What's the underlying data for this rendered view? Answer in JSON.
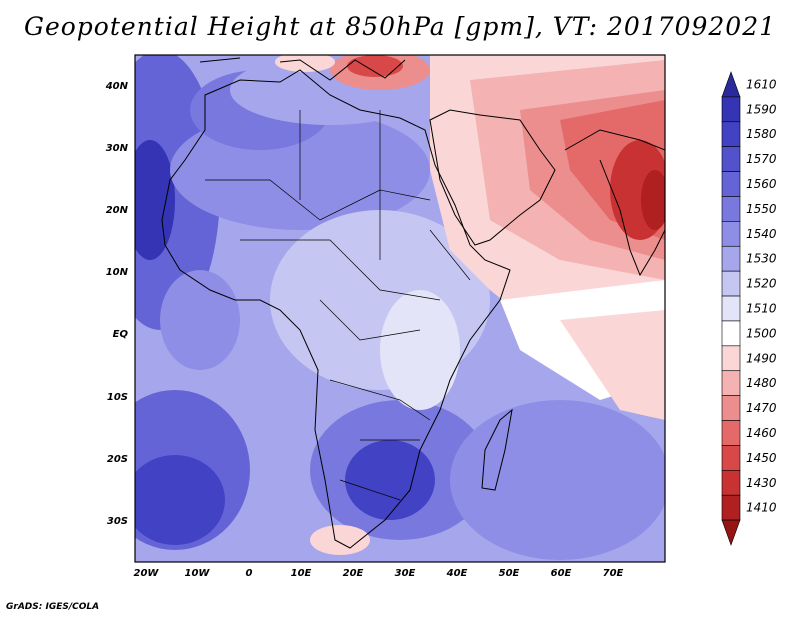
{
  "title": "Geopotential Height at 850hPa [gpm], VT: 2017092021",
  "credit": "GrADS: IGES/COLA",
  "axes": {
    "lat_ticks": [
      "40N",
      "30N",
      "20N",
      "10N",
      "EQ",
      "10S",
      "20S",
      "30S"
    ],
    "lon_ticks": [
      "20W",
      "10W",
      "0",
      "10E",
      "20E",
      "30E",
      "40E",
      "50E",
      "60E",
      "70E"
    ]
  },
  "colorbar": {
    "levels": [
      "1610",
      "1590",
      "1580",
      "1570",
      "1560",
      "1550",
      "1540",
      "1530",
      "1520",
      "1510",
      "1500",
      "1490",
      "1480",
      "1470",
      "1460",
      "1450",
      "1430",
      "1410"
    ],
    "colors": [
      "#2a2a9c",
      "#3434b4",
      "#4242c4",
      "#5252cc",
      "#6464d6",
      "#7878de",
      "#8e8ee6",
      "#a6a6ec",
      "#c6c6f2",
      "#e4e4f8",
      "#ffffff",
      "#fad6d6",
      "#f4b2b2",
      "#ec8e8e",
      "#e46a6a",
      "#d84848",
      "#c83232",
      "#b02020",
      "#961414"
    ]
  },
  "colors": {
    "coastline": "#000000",
    "ocean_blue": "#6464d6",
    "warm_red": "#d84848"
  }
}
